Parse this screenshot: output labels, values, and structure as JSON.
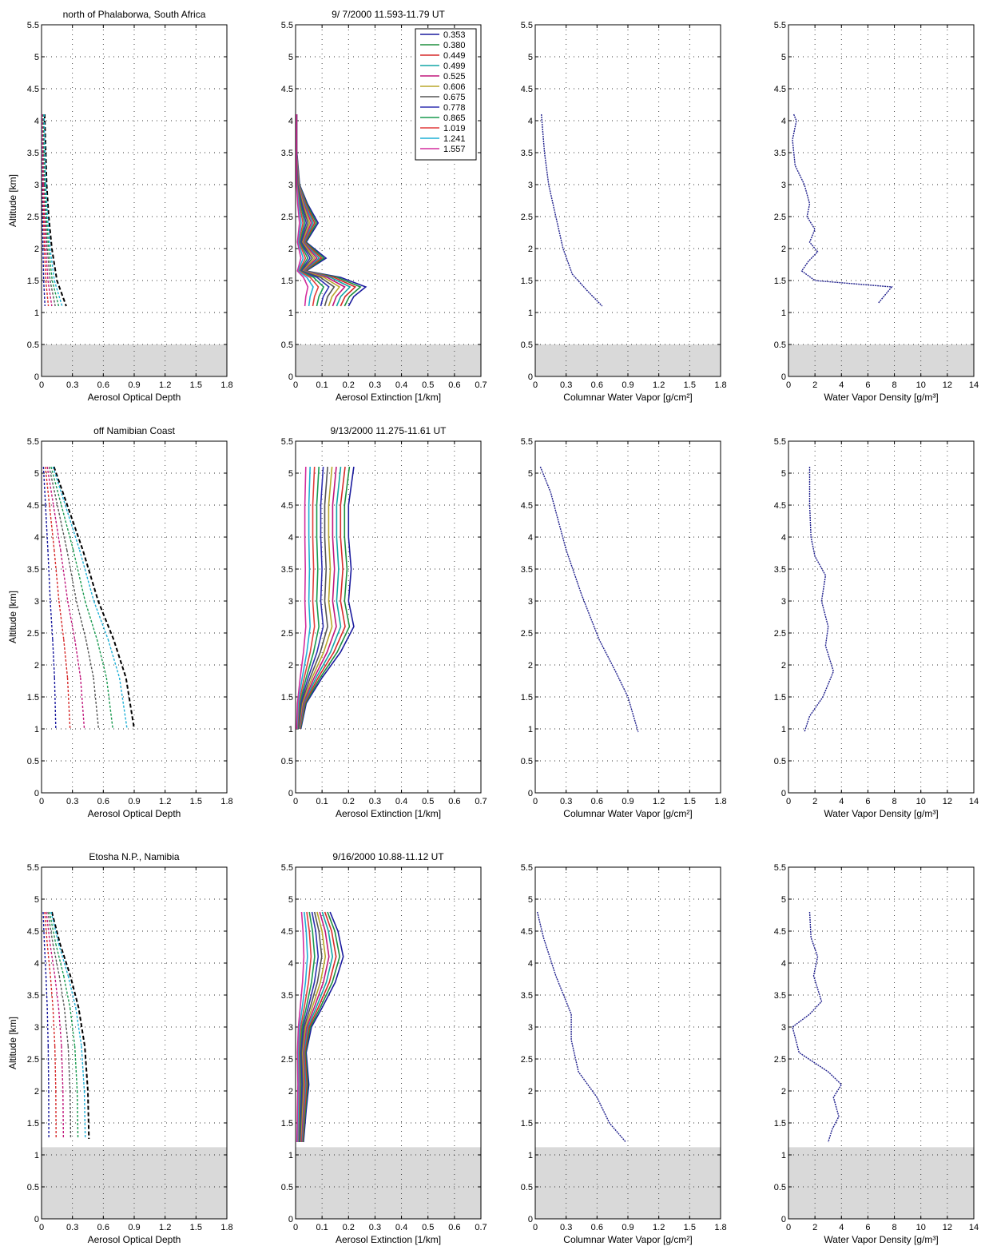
{
  "chart_data": [
    {
      "panel_id": "r1c1",
      "type": "line",
      "title": "north of Phalaborwa, South Africa",
      "xlabel": "Aerosol Optical Depth",
      "ylabel": "Altitude [km]",
      "xlim": [
        0,
        1.8
      ],
      "ylim": [
        0,
        5.5
      ],
      "xticks": [
        "0",
        "0.3",
        "0.6",
        "0.9",
        "1.2",
        "1.5",
        "1.8"
      ],
      "yticks": [
        "0",
        "0.5",
        "1",
        "1.5",
        "2",
        "2.5",
        "3",
        "3.5",
        "4",
        "4.5",
        "5",
        "5.5"
      ],
      "ground_shading_top_km": 0.5,
      "grid": true,
      "x_stretch": 0.9,
      "series": [
        {
          "values": [
            [
              0.03,
              4.1
            ],
            [
              0.05,
              3
            ],
            [
              0.07,
              2.5
            ],
            [
              0.1,
              2
            ],
            [
              0.15,
              1.5
            ],
            [
              0.24,
              1.1
            ]
          ]
        }
      ]
    },
    {
      "panel_id": "r1c2",
      "type": "line",
      "title": "9/ 7/2000 11.593-11.79  UT",
      "xlabel": "Aerosol Extinction [1/km]",
      "ylabel": "",
      "xlim": [
        0,
        0.7
      ],
      "ylim": [
        0,
        5.5
      ],
      "xticks": [
        "0",
        "0.1",
        "0.2",
        "0.3",
        "0.4",
        "0.5",
        "0.6",
        "0.7"
      ],
      "yticks": [
        "0",
        "0.5",
        "1",
        "1.5",
        "2",
        "2.5",
        "3",
        "3.5",
        "4",
        "4.5",
        "5",
        "5.5"
      ],
      "ground_shading_top_km": 0.5,
      "grid": true,
      "legend": {
        "position": "top-right",
        "entries": [
          "0.353",
          "0.380",
          "0.449",
          "0.499",
          "0.525",
          "0.606",
          "0.675",
          "0.778",
          "0.865",
          "1.019",
          "1.241",
          "1.557"
        ]
      },
      "series": [
        {
          "values": [
            [
              0.005,
              4.1
            ],
            [
              0.005,
              3.5
            ],
            [
              0.015,
              3.0
            ],
            [
              0.045,
              2.7
            ],
            [
              0.085,
              2.4
            ],
            [
              0.04,
              2.1
            ],
            [
              0.115,
              1.85
            ],
            [
              0.04,
              1.65
            ],
            [
              0.17,
              1.55
            ],
            [
              0.265,
              1.4
            ],
            [
              0.22,
              1.25
            ],
            [
              0.2,
              1.1
            ]
          ]
        }
      ]
    },
    {
      "panel_id": "r1c3",
      "type": "line",
      "title": "",
      "xlabel": "Columnar Water Vapor [g/cm²]",
      "ylabel": "",
      "xlim": [
        0,
        1.8
      ],
      "ylim": [
        0,
        5.5
      ],
      "xticks": [
        "0",
        "0.3",
        "0.6",
        "0.9",
        "1.2",
        "1.5",
        "1.8"
      ],
      "yticks": [
        "0",
        "0.5",
        "1",
        "1.5",
        "2",
        "2.5",
        "3",
        "3.5",
        "4",
        "4.5",
        "5",
        "5.5"
      ],
      "ground_shading_top_km": 0.5,
      "grid": true,
      "series": [
        {
          "values": [
            [
              0.06,
              4.1
            ],
            [
              0.09,
              3.5
            ],
            [
              0.13,
              3.0
            ],
            [
              0.2,
              2.5
            ],
            [
              0.27,
              2.0
            ],
            [
              0.36,
              1.6
            ],
            [
              0.5,
              1.35
            ],
            [
              0.65,
              1.1
            ]
          ]
        }
      ]
    },
    {
      "panel_id": "r1c4",
      "type": "line",
      "title": "",
      "xlabel": "Water Vapor Density [g/m³]",
      "ylabel": "",
      "xlim": [
        0,
        14
      ],
      "ylim": [
        0,
        5.5
      ],
      "xticks": [
        "0",
        "2",
        "4",
        "6",
        "8",
        "10",
        "12",
        "14"
      ],
      "yticks": [
        "0",
        "0.5",
        "1",
        "1.5",
        "2",
        "2.5",
        "3",
        "3.5",
        "4",
        "4.5",
        "5",
        "5.5"
      ],
      "ground_shading_top_km": 0.5,
      "grid": true,
      "series": [
        {
          "values": [
            [
              0.4,
              4.1
            ],
            [
              0.6,
              4.0
            ],
            [
              0.3,
              3.7
            ],
            [
              0.5,
              3.3
            ],
            [
              1.2,
              3.0
            ],
            [
              1.6,
              2.7
            ],
            [
              1.4,
              2.5
            ],
            [
              2.0,
              2.3
            ],
            [
              1.6,
              2.1
            ],
            [
              2.2,
              1.95
            ],
            [
              1.5,
              1.8
            ],
            [
              1.0,
              1.65
            ],
            [
              2.0,
              1.5
            ],
            [
              7.8,
              1.4
            ],
            [
              7.2,
              1.25
            ],
            [
              6.8,
              1.15
            ]
          ]
        }
      ]
    },
    {
      "panel_id": "r2c1",
      "type": "line",
      "title": "off Namibian Coast",
      "xlabel": "Aerosol Optical Depth",
      "ylabel": "Altitude [km]",
      "xlim": [
        0,
        1.8
      ],
      "ylim": [
        0,
        5.5
      ],
      "xticks": [
        "0",
        "0.3",
        "0.6",
        "0.9",
        "1.2",
        "1.5",
        "1.8"
      ],
      "yticks": [
        "0",
        "0.5",
        "1",
        "1.5",
        "2",
        "2.5",
        "3",
        "3.5",
        "4",
        "4.5",
        "5",
        "5.5"
      ],
      "ground_shading_top_km": null,
      "grid": true,
      "x_stretch": 1.0,
      "series": [
        {
          "values": [
            [
              0.12,
              5.1
            ],
            [
              0.25,
              4.5
            ],
            [
              0.4,
              3.8
            ],
            [
              0.55,
              3.0
            ],
            [
              0.7,
              2.4
            ],
            [
              0.82,
              1.8
            ],
            [
              0.9,
              1.0
            ]
          ]
        }
      ]
    },
    {
      "panel_id": "r2c2",
      "type": "line",
      "title": "9/13/2000 11.275-11.61  UT",
      "xlabel": "Aerosol Extinction [1/km]",
      "ylabel": "",
      "xlim": [
        0,
        0.7
      ],
      "ylim": [
        0,
        5.5
      ],
      "xticks": [
        "0",
        "0.1",
        "0.2",
        "0.3",
        "0.4",
        "0.5",
        "0.6",
        "0.7"
      ],
      "yticks": [
        "0",
        "0.5",
        "1",
        "1.5",
        "2",
        "2.5",
        "3",
        "3.5",
        "4",
        "4.5",
        "5",
        "5.5"
      ],
      "ground_shading_top_km": null,
      "grid": true,
      "series": [
        {
          "values": [
            [
              0.22,
              5.1
            ],
            [
              0.2,
              4.5
            ],
            [
              0.2,
              4.0
            ],
            [
              0.21,
              3.5
            ],
            [
              0.2,
              3.0
            ],
            [
              0.22,
              2.6
            ],
            [
              0.17,
              2.2
            ],
            [
              0.1,
              1.8
            ],
            [
              0.04,
              1.4
            ],
            [
              0.02,
              1.0
            ]
          ]
        }
      ]
    },
    {
      "panel_id": "r2c3",
      "type": "line",
      "title": "",
      "xlabel": "Columnar Water Vapor [g/cm²]",
      "ylabel": "",
      "xlim": [
        0,
        1.8
      ],
      "ylim": [
        0,
        5.5
      ],
      "xticks": [
        "0",
        "0.3",
        "0.6",
        "0.9",
        "1.2",
        "1.5",
        "1.8"
      ],
      "yticks": [
        "0",
        "0.5",
        "1",
        "1.5",
        "2",
        "2.5",
        "3",
        "3.5",
        "4",
        "4.5",
        "5",
        "5.5"
      ],
      "ground_shading_top_km": null,
      "grid": true,
      "series": [
        {
          "values": [
            [
              0.05,
              5.1
            ],
            [
              0.15,
              4.7
            ],
            [
              0.3,
              3.8
            ],
            [
              0.45,
              3.1
            ],
            [
              0.62,
              2.4
            ],
            [
              0.78,
              1.9
            ],
            [
              0.9,
              1.5
            ],
            [
              1.0,
              0.95
            ]
          ]
        }
      ]
    },
    {
      "panel_id": "r2c4",
      "type": "line",
      "title": "",
      "xlabel": "Water Vapor Density [g/m³]",
      "ylabel": "",
      "xlim": [
        0,
        14
      ],
      "ylim": [
        0,
        5.5
      ],
      "xticks": [
        "0",
        "2",
        "4",
        "6",
        "8",
        "10",
        "12",
        "14"
      ],
      "yticks": [
        "0",
        "0.5",
        "1",
        "1.5",
        "2",
        "2.5",
        "3",
        "3.5",
        "4",
        "4.5",
        "5",
        "5.5"
      ],
      "ground_shading_top_km": null,
      "grid": true,
      "series": [
        {
          "values": [
            [
              1.6,
              5.1
            ],
            [
              1.6,
              4.5
            ],
            [
              1.7,
              4.0
            ],
            [
              2.0,
              3.7
            ],
            [
              2.8,
              3.4
            ],
            [
              2.5,
              3.0
            ],
            [
              3.0,
              2.6
            ],
            [
              2.8,
              2.3
            ],
            [
              3.4,
              1.9
            ],
            [
              2.6,
              1.5
            ],
            [
              1.6,
              1.2
            ],
            [
              1.2,
              0.95
            ]
          ]
        }
      ]
    },
    {
      "panel_id": "r3c1",
      "type": "line",
      "title": "Etosha N.P., Namibia",
      "xlabel": "Aerosol Optical Depth",
      "ylabel": "Altitude [km]",
      "xlim": [
        0,
        1.8
      ],
      "ylim": [
        0,
        5.5
      ],
      "xticks": [
        "0",
        "0.3",
        "0.6",
        "0.9",
        "1.2",
        "1.5",
        "1.8"
      ],
      "yticks": [
        "0",
        "0.5",
        "1",
        "1.5",
        "2",
        "2.5",
        "3",
        "3.5",
        "4",
        "4.5",
        "5",
        "5.5"
      ],
      "ground_shading_top_km": 1.12,
      "grid": true,
      "x_stretch": 1.0,
      "series": [
        {
          "values": [
            [
              0.1,
              4.8
            ],
            [
              0.18,
              4.3
            ],
            [
              0.28,
              3.8
            ],
            [
              0.36,
              3.3
            ],
            [
              0.42,
              2.7
            ],
            [
              0.45,
              2.0
            ],
            [
              0.46,
              1.25
            ]
          ]
        }
      ]
    },
    {
      "panel_id": "r3c2",
      "type": "line",
      "title": "9/16/2000 10.88-11.12  UT",
      "xlabel": "Aerosol Extinction [1/km]",
      "ylabel": "",
      "xlim": [
        0,
        0.7
      ],
      "ylim": [
        0,
        5.5
      ],
      "xticks": [
        "0",
        "0.1",
        "0.2",
        "0.3",
        "0.4",
        "0.5",
        "0.6",
        "0.7"
      ],
      "yticks": [
        "0",
        "0.5",
        "1",
        "1.5",
        "2",
        "2.5",
        "3",
        "3.5",
        "4",
        "4.5",
        "5",
        "5.5"
      ],
      "ground_shading_top_km": 1.12,
      "grid": true,
      "series": [
        {
          "values": [
            [
              0.13,
              4.8
            ],
            [
              0.16,
              4.5
            ],
            [
              0.18,
              4.1
            ],
            [
              0.15,
              3.7
            ],
            [
              0.1,
              3.3
            ],
            [
              0.06,
              3.0
            ],
            [
              0.04,
              2.6
            ],
            [
              0.05,
              2.1
            ],
            [
              0.04,
              1.7
            ],
            [
              0.03,
              1.2
            ]
          ]
        }
      ]
    },
    {
      "panel_id": "r3c3",
      "type": "line",
      "title": "",
      "xlabel": "Columnar Water Vapor [g/cm²]",
      "ylabel": "",
      "xlim": [
        0,
        1.8
      ],
      "ylim": [
        0,
        5.5
      ],
      "xticks": [
        "0",
        "0.3",
        "0.6",
        "0.9",
        "1.2",
        "1.5",
        "1.8"
      ],
      "yticks": [
        "0",
        "0.5",
        "1",
        "1.5",
        "2",
        "2.5",
        "3",
        "3.5",
        "4",
        "4.5",
        "5",
        "5.5"
      ],
      "ground_shading_top_km": 1.12,
      "grid": true,
      "series": [
        {
          "values": [
            [
              0.02,
              4.8
            ],
            [
              0.08,
              4.4
            ],
            [
              0.2,
              3.8
            ],
            [
              0.35,
              3.2
            ],
            [
              0.35,
              2.8
            ],
            [
              0.42,
              2.3
            ],
            [
              0.6,
              1.9
            ],
            [
              0.72,
              1.5
            ],
            [
              0.88,
              1.2
            ]
          ]
        }
      ]
    },
    {
      "panel_id": "r3c4",
      "type": "line",
      "title": "",
      "xlabel": "Water Vapor Density [g/m³]",
      "ylabel": "",
      "xlim": [
        0,
        14
      ],
      "ylim": [
        0,
        5.5
      ],
      "xticks": [
        "0",
        "2",
        "4",
        "6",
        "8",
        "10",
        "12",
        "14"
      ],
      "yticks": [
        "0",
        "0.5",
        "1",
        "1.5",
        "2",
        "2.5",
        "3",
        "3.5",
        "4",
        "4.5",
        "5",
        "5.5"
      ],
      "ground_shading_top_km": 1.12,
      "grid": true,
      "series": [
        {
          "values": [
            [
              1.6,
              4.8
            ],
            [
              1.7,
              4.4
            ],
            [
              2.2,
              4.1
            ],
            [
              1.9,
              3.8
            ],
            [
              2.5,
              3.4
            ],
            [
              1.6,
              3.2
            ],
            [
              0.3,
              3.0
            ],
            [
              0.8,
              2.6
            ],
            [
              3.0,
              2.3
            ],
            [
              4.0,
              2.1
            ],
            [
              3.4,
              1.9
            ],
            [
              3.8,
              1.6
            ],
            [
              3.3,
              1.4
            ],
            [
              3.0,
              1.2
            ]
          ]
        }
      ]
    }
  ],
  "colors": {
    "ground_shading": "#d9d9d9",
    "profile": "#1f1f8c",
    "aod_marks": "#000000",
    "wavelength_palette": [
      "#1b1b9e",
      "#1e8f3e",
      "#d62a2a",
      "#12a6a6",
      "#c0177c",
      "#b8a72a",
      "#555555",
      "#3030b0",
      "#199a4f",
      "#e23c3c",
      "#1fb0d6",
      "#d42d9e"
    ]
  }
}
